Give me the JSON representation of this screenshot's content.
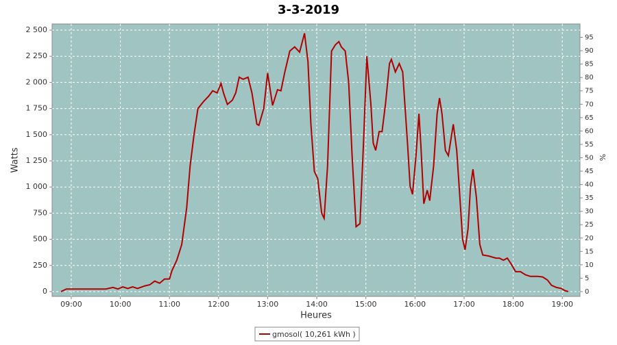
{
  "chart_data": {
    "type": "line",
    "title": "3-3-2019",
    "x_label": "Heures",
    "y_label": "Watts",
    "y2_label": "%",
    "x": [
      8.79,
      8.9,
      9.5,
      9.7,
      9.85,
      9.95,
      10.05,
      10.15,
      10.25,
      10.35,
      10.5,
      10.6,
      10.7,
      10.8,
      10.9,
      11.0,
      11.05,
      11.15,
      11.25,
      11.35,
      11.42,
      11.5,
      11.58,
      11.7,
      11.8,
      11.88,
      11.97,
      12.05,
      12.1,
      12.18,
      12.28,
      12.35,
      12.42,
      12.5,
      12.6,
      12.68,
      12.78,
      12.82,
      12.92,
      13.0,
      13.1,
      13.2,
      13.27,
      13.35,
      13.45,
      13.55,
      13.65,
      13.75,
      13.82,
      13.88,
      13.95,
      14.02,
      14.1,
      14.15,
      14.22,
      14.3,
      14.38,
      14.45,
      14.5,
      14.58,
      14.65,
      14.72,
      14.8,
      14.88,
      14.95,
      15.02,
      15.1,
      15.15,
      15.2,
      15.27,
      15.33,
      15.4,
      15.48,
      15.52,
      15.6,
      15.68,
      15.75,
      15.85,
      15.9,
      15.95,
      16.02,
      16.08,
      16.12,
      16.18,
      16.25,
      16.3,
      16.38,
      16.45,
      16.5,
      16.55,
      16.62,
      16.68,
      16.78,
      16.85,
      16.9,
      16.97,
      17.02,
      17.08,
      17.13,
      17.18,
      17.25,
      17.32,
      17.38,
      17.5,
      17.65,
      17.72,
      17.8,
      17.88,
      17.95,
      18.05,
      18.15,
      18.25,
      18.35,
      18.5,
      18.6,
      18.7,
      18.78,
      18.88,
      18.98,
      19.05,
      19.12
    ],
    "series": [
      {
        "name": "gmosol( 10,261 kWh )",
        "color": "#b00000",
        "values": [
          0,
          25,
          25,
          25,
          40,
          25,
          45,
          30,
          45,
          30,
          55,
          65,
          100,
          80,
          120,
          120,
          200,
          300,
          450,
          800,
          1200,
          1500,
          1750,
          1820,
          1870,
          1920,
          1900,
          1990,
          1900,
          1790,
          1830,
          1900,
          2050,
          2030,
          2050,
          1900,
          1600,
          1590,
          1750,
          2090,
          1780,
          1930,
          1920,
          2100,
          2300,
          2340,
          2290,
          2470,
          2200,
          1600,
          1150,
          1080,
          750,
          700,
          1200,
          2300,
          2360,
          2390,
          2340,
          2300,
          2000,
          1300,
          620,
          650,
          1400,
          2250,
          1800,
          1420,
          1350,
          1530,
          1530,
          1800,
          2180,
          2220,
          2100,
          2180,
          2100,
          1400,
          1010,
          930,
          1300,
          1700,
          1400,
          840,
          970,
          870,
          1200,
          1700,
          1850,
          1700,
          1350,
          1300,
          1600,
          1350,
          1000,
          500,
          400,
          600,
          1000,
          1170,
          900,
          450,
          350,
          340,
          320,
          320,
          300,
          320,
          270,
          190,
          190,
          160,
          145,
          145,
          140,
          110,
          60,
          40,
          30,
          10,
          0
        ]
      }
    ],
    "xlim": [
      8.61,
      19.36
    ],
    "xticks": [
      {
        "value": 9,
        "label": "09:00"
      },
      {
        "value": 10,
        "label": "10:00"
      },
      {
        "value": 11,
        "label": "11:00"
      },
      {
        "value": 12,
        "label": "12:00"
      },
      {
        "value": 13,
        "label": "13:00"
      },
      {
        "value": 14,
        "label": "14:00"
      },
      {
        "value": 15,
        "label": "15:00"
      },
      {
        "value": 16,
        "label": "16:00"
      },
      {
        "value": 17,
        "label": "17:00"
      },
      {
        "value": 18,
        "label": "18:00"
      },
      {
        "value": 19,
        "label": "19:00"
      }
    ],
    "ylim": [
      -46,
      2559
    ],
    "yticks": [
      0,
      250,
      500,
      750,
      {
        "value": 1000,
        "label": "1 000"
      },
      {
        "value": 1250,
        "label": "1 250"
      },
      {
        "value": 1500,
        "label": "1 500"
      },
      {
        "value": 1750,
        "label": "1 750"
      },
      {
        "value": 2000,
        "label": "2 000"
      },
      {
        "value": 2250,
        "label": "2 250"
      },
      {
        "value": 2500,
        "label": "2 500"
      }
    ],
    "y2lim": [
      -1.8,
      100
    ],
    "y2ticks": [
      0,
      5,
      10,
      15,
      20,
      25,
      30,
      35,
      40,
      45,
      50,
      55,
      60,
      65,
      70,
      75,
      80,
      85,
      90,
      95
    ],
    "grid": true,
    "plot_background": "#9fc4c2"
  }
}
